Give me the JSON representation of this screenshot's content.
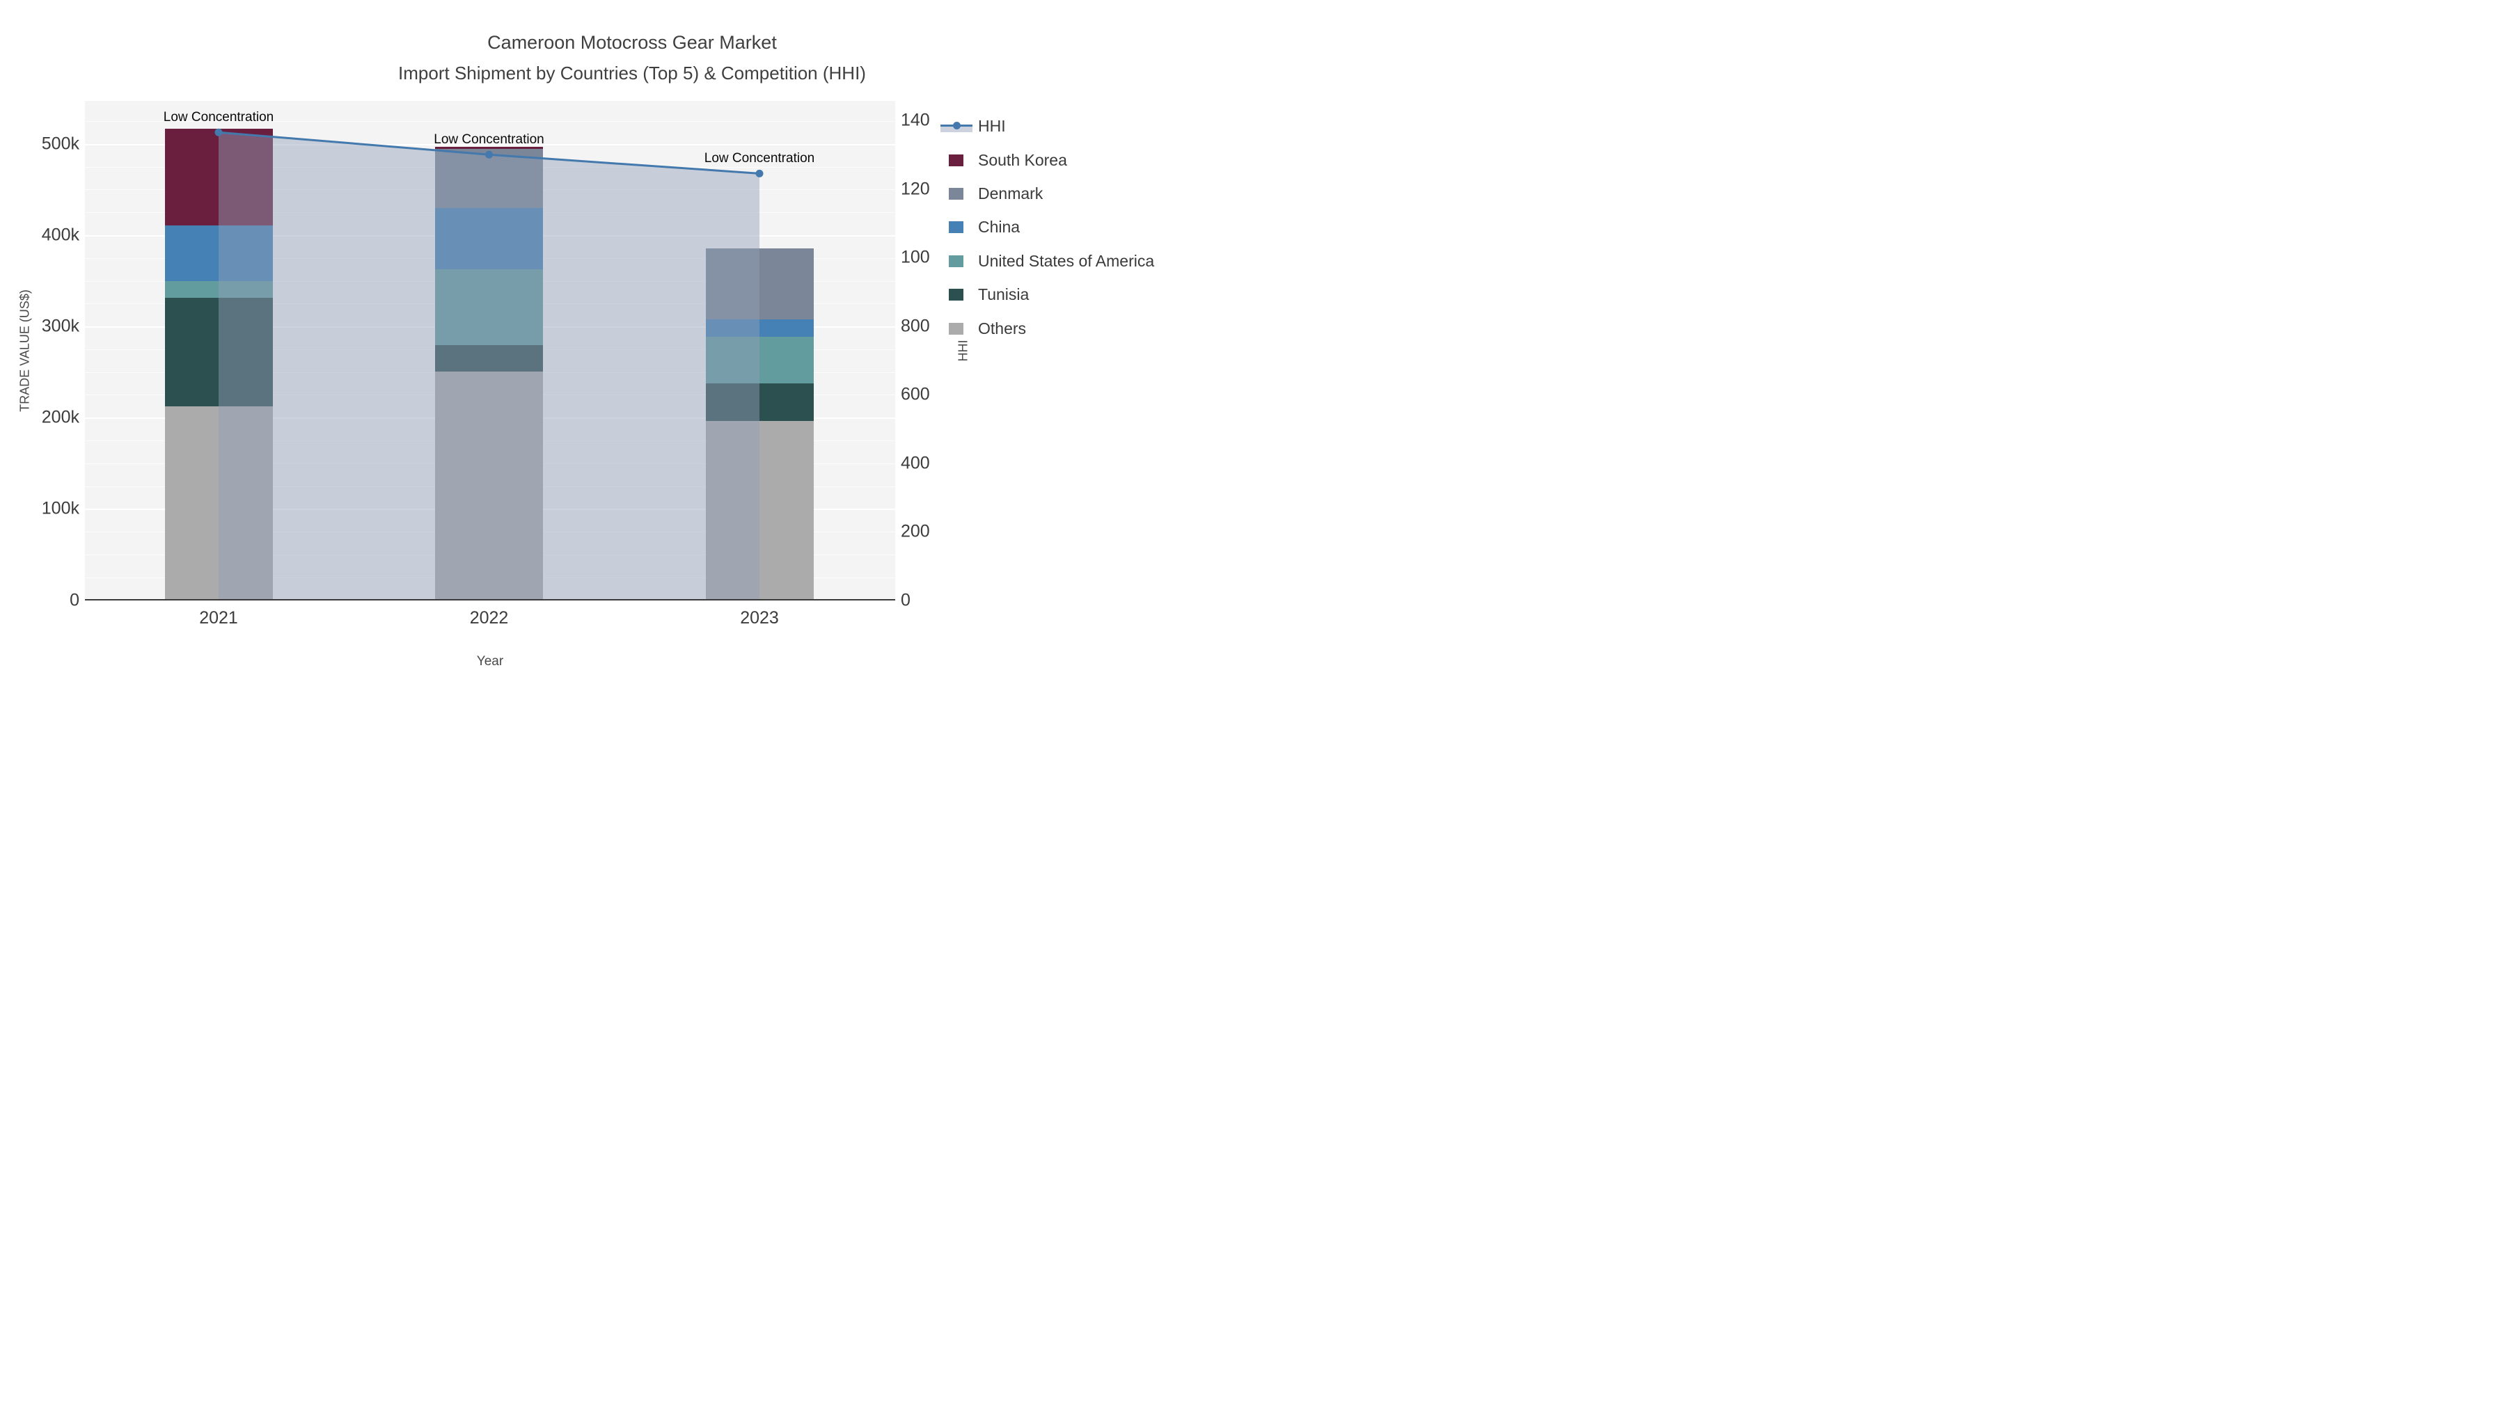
{
  "title": {
    "line1": "Cameroon Motocross Gear Market",
    "line2": "Import Shipment by Countries (Top 5) & Competition (HHI)"
  },
  "axes": {
    "left": {
      "label": "TRADE VALUE (US$)",
      "tick_labels": [
        "0",
        "100k",
        "200k",
        "300k",
        "400k",
        "500k"
      ],
      "tick_values_k": [
        0,
        100,
        200,
        300,
        400,
        500
      ]
    },
    "right": {
      "label": "HHI",
      "tick_labels": [
        "0",
        "200",
        "400",
        "600",
        "800",
        "100",
        "120",
        "140"
      ],
      "tick_step_units": 200
    },
    "x": {
      "label": "Year",
      "categories": [
        "2021",
        "2022",
        "2023"
      ]
    }
  },
  "legend": {
    "items": [
      {
        "label": "HHI",
        "type": "line",
        "color": "#4379AC",
        "band_color": "#CDD3DE"
      },
      {
        "label": "South Korea",
        "type": "patch",
        "color": "#6B1F3E"
      },
      {
        "label": "Denmark",
        "type": "patch",
        "color": "#7B8798"
      },
      {
        "label": "China",
        "type": "patch",
        "color": "#4581B5"
      },
      {
        "label": "United States of America",
        "type": "patch",
        "color": "#639C9F"
      },
      {
        "label": "Tunisia",
        "type": "patch",
        "color": "#2C4F4F"
      },
      {
        "label": "Others",
        "type": "patch",
        "color": "#ABABAB"
      }
    ]
  },
  "chart_data": {
    "type": "bar",
    "stacked": true,
    "categories": [
      "2021",
      "2022",
      "2023"
    ],
    "values_unit": "US$ thousands",
    "series": [
      {
        "name": "Others",
        "color": "#ABABAB",
        "values": [
          213,
          251,
          197
        ]
      },
      {
        "name": "Tunisia",
        "color": "#2C4F4F",
        "values": [
          119,
          29,
          41
        ]
      },
      {
        "name": "United States of America",
        "color": "#639C9F",
        "values": [
          18,
          83,
          51
        ]
      },
      {
        "name": "China",
        "color": "#4581B5",
        "values": [
          61,
          67,
          19
        ]
      },
      {
        "name": "Denmark",
        "color": "#7B8798",
        "values": [
          0,
          65,
          78
        ]
      },
      {
        "name": "South Korea",
        "color": "#6B1F3E",
        "values": [
          106,
          2,
          0
        ]
      }
    ],
    "totals_k": [
      517,
      497,
      386
    ],
    "line_series": {
      "name": "HHI",
      "axis": "right",
      "color": "#4379AC",
      "area_color": "rgba(146,159,184,0.45)",
      "values": [
        1365,
        1300,
        1245
      ],
      "point_labels": [
        "Low Concentration",
        "Low Concentration",
        "Low Concentration"
      ]
    },
    "title": "Cameroon Motocross Gear Market — Import Shipment by Countries (Top 5) & Competition (HHI)",
    "xlabel": "Year",
    "ylabel": "TRADE VALUE (US$)",
    "ylabel_right": "HHI",
    "ylim_left_k": [
      0,
      547.5
    ],
    "ylim_right": [
      0,
      1457
    ],
    "grid": true,
    "legend_position": "right"
  }
}
